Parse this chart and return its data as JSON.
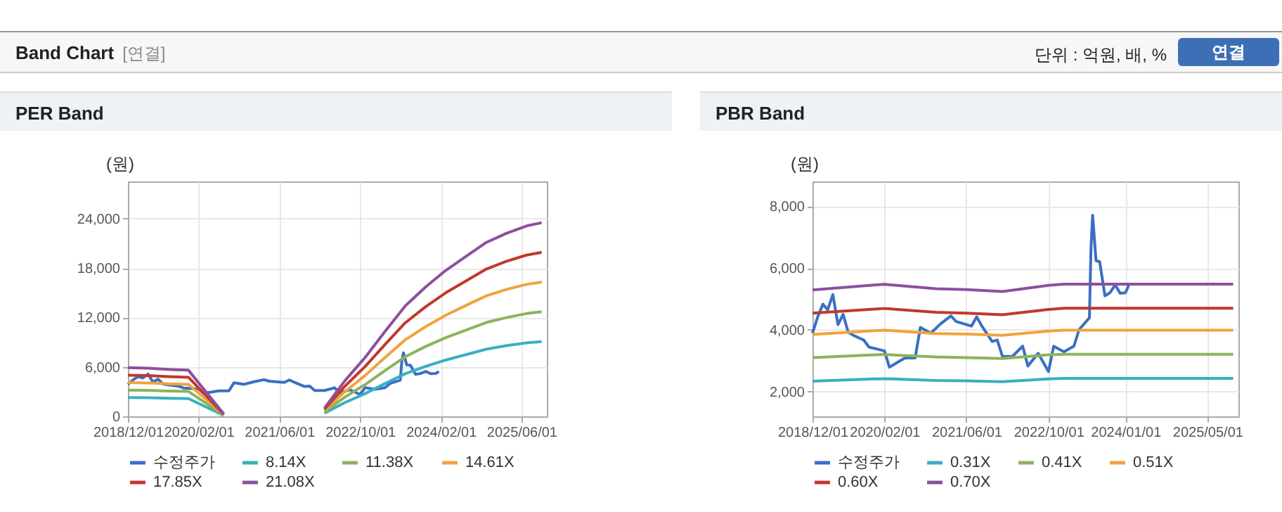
{
  "chart_data": [
    {
      "type": "other",
      "title": "Band Chart",
      "subtitle": "[연결]",
      "annotations": [
        "단위 : 억원, 배, %",
        "연결"
      ]
    },
    {
      "type": "line",
      "title": "PER Band",
      "ylabel": "(원)",
      "grid": true,
      "legend": "bottom",
      "xlim": [
        "2018-12-01",
        "2025-11-01"
      ],
      "xticks": [
        {
          "value": "2018-12-01",
          "label": "2018/12/01"
        },
        {
          "value": "2020-02-01",
          "label": "2020/02/01"
        },
        {
          "value": "2021-06-01",
          "label": "2021/06/01"
        },
        {
          "value": "2022-10-01",
          "label": "2022/10/01"
        },
        {
          "value": "2024-02-01",
          "label": "2024/02/01"
        },
        {
          "value": "2025-06-01",
          "label": "2025/06/01"
        }
      ],
      "ylim": [
        0,
        28500
      ],
      "yticks": [
        0,
        {
          "value": 6000,
          "label": "6,000"
        },
        {
          "value": 12000,
          "label": "12,000"
        },
        {
          "value": 18000,
          "label": "18,000"
        },
        {
          "value": 24000,
          "label": "24,000"
        }
      ],
      "x": [
        "2018-12",
        "2019-04",
        "2019-08",
        "2019-12",
        "2020-07",
        "2021-01",
        "2022-03",
        "2022-07",
        "2022-11",
        "2023-03",
        "2023-07",
        "2023-11",
        "2024-03",
        "2024-07",
        "2024-11",
        "2025-03",
        "2025-07",
        "2025-10"
      ],
      "series": [
        {
          "name": "수정주가",
          "color": "#3a6fc4",
          "x": [
            "2018-12-01",
            "2019-01-01",
            "2019-02-01",
            "2019-03-01",
            "2019-04-01",
            "2019-05-01",
            "2019-06-01",
            "2019-07-01",
            "2019-08-01",
            "2019-10-01",
            "2019-11-01",
            "2020-02-01",
            "2020-03-01",
            "2020-06-01",
            "2020-08-01",
            "2020-09-01",
            "2020-11-01",
            "2021-01-01",
            "2021-03-01",
            "2021-04-01",
            "2021-07-01",
            "2021-08-01",
            "2021-09-01",
            "2021-11-01",
            "2021-12-01",
            "2022-01-01",
            "2022-03-01",
            "2022-05-01",
            "2022-06-01",
            "2022-08-01",
            "2022-10-01",
            "2022-11-01",
            "2023-01-01",
            "2023-03-01",
            "2023-04-01",
            "2023-06-01",
            "2023-06-10",
            "2023-06-20",
            "2023-07-10",
            "2023-08-01",
            "2023-09-01",
            "2023-10-01",
            "2023-11-01",
            "2023-12-01",
            "2024-01-01",
            "2024-01-20"
          ],
          "values": [
            3890,
            4420,
            4830,
            4650,
            5140,
            4170,
            4500,
            3920,
            3820,
            3670,
            3440,
            3320,
            2790,
            3090,
            3090,
            4080,
            3890,
            4200,
            4450,
            4270,
            4120,
            4420,
            4120,
            3620,
            3670,
            3140,
            3140,
            3470,
            2830,
            3240,
            2650,
            3470,
            3290,
            3470,
            4010,
            4390,
            6600,
            7710,
            6240,
            6200,
            5100,
            5200,
            5450,
            5180,
            5200,
            5440
          ]
        },
        {
          "name": "8.14X",
          "color": "#3aafc0",
          "values": [
            2280,
            2260,
            2200,
            2160,
            120,
            null,
            390,
            1660,
            2760,
            3980,
            5170,
            6060,
            6830,
            7490,
            8150,
            8570,
            8920,
            9070
          ]
        },
        {
          "name": "11.38X",
          "color": "#8db35a",
          "values": [
            3180,
            3160,
            3080,
            3020,
            160,
            null,
            540,
            2320,
            3860,
            5560,
            7230,
            8480,
            9550,
            10470,
            11390,
            11980,
            12470,
            12690
          ]
        },
        {
          "name": "14.61X",
          "color": "#f0a33c",
          "values": [
            4090,
            4050,
            3950,
            3880,
            210,
            null,
            690,
            2980,
            4960,
            7140,
            9290,
            10880,
            12270,
            13450,
            14620,
            15390,
            16010,
            16290
          ]
        },
        {
          "name": "17.85X",
          "color": "#c0392b",
          "values": [
            5000,
            4950,
            4830,
            4740,
            250,
            null,
            850,
            3640,
            6050,
            8720,
            11350,
            13300,
            14990,
            16430,
            17870,
            18800,
            19560,
            19900
          ]
        },
        {
          "name": "21.08X",
          "color": "#8e4f9e",
          "values": [
            5900,
            5850,
            5700,
            5600,
            300,
            null,
            1000,
            4300,
            7150,
            10300,
            13400,
            15700,
            17700,
            19400,
            21100,
            22200,
            23100,
            23500
          ]
        }
      ]
    },
    {
      "type": "line",
      "title": "PBR Band",
      "ylabel": "(원)",
      "grid": true,
      "legend": "bottom",
      "xlim": [
        "2018-12-01",
        "2025-11-01"
      ],
      "xticks": [
        {
          "value": "2018-12-01",
          "label": "2018/12/01"
        },
        {
          "value": "2020-02-01",
          "label": "2020/02/01"
        },
        {
          "value": "2021-06-01",
          "label": "2021/06/01"
        },
        {
          "value": "2022-10-01",
          "label": "2022/10/01"
        },
        {
          "value": "2024-01-01",
          "label": "2024/01/01"
        },
        {
          "value": "2025-05-01",
          "label": "2025/05/01"
        }
      ],
      "ylim": [
        1200,
        8800
      ],
      "yticks": [
        {
          "value": 2000,
          "label": "2,000"
        },
        {
          "value": 4000,
          "label": "4,000"
        },
        {
          "value": 6000,
          "label": "6,000"
        },
        {
          "value": 8000,
          "label": "8,000"
        }
      ],
      "x": [
        "2018-12",
        "2019-12",
        "2020-02",
        "2020-12",
        "2021-06",
        "2022-01",
        "2022-10",
        "2023-01",
        "2025-10"
      ],
      "series": [
        {
          "name": "수정주가",
          "color": "#3a6fc4",
          "x": [
            "2018-12-01",
            "2019-01-01",
            "2019-02-01",
            "2019-03-01",
            "2019-04-01",
            "2019-05-01",
            "2019-06-01",
            "2019-07-01",
            "2019-08-01",
            "2019-10-01",
            "2019-11-01",
            "2020-02-01",
            "2020-03-01",
            "2020-06-01",
            "2020-08-01",
            "2020-09-01",
            "2020-11-01",
            "2021-01-01",
            "2021-03-01",
            "2021-04-01",
            "2021-07-01",
            "2021-08-01",
            "2021-09-01",
            "2021-11-01",
            "2021-12-01",
            "2022-01-01",
            "2022-03-01",
            "2022-05-01",
            "2022-06-01",
            "2022-08-01",
            "2022-10-01",
            "2022-11-01",
            "2023-01-01",
            "2023-03-01",
            "2023-04-01",
            "2023-06-01",
            "2023-06-10",
            "2023-06-20",
            "2023-07-10",
            "2023-08-01",
            "2023-09-01",
            "2023-10-01",
            "2023-11-01",
            "2023-12-01",
            "2024-01-01",
            "2024-01-20"
          ],
          "values": [
            3890,
            4420,
            4830,
            4650,
            5140,
            4170,
            4500,
            3920,
            3820,
            3670,
            3440,
            3320,
            2790,
            3090,
            3090,
            4080,
            3890,
            4200,
            4450,
            4270,
            4120,
            4420,
            4120,
            3620,
            3670,
            3140,
            3140,
            3470,
            2830,
            3240,
            2650,
            3470,
            3290,
            3470,
            4010,
            4390,
            6600,
            7710,
            6240,
            6200,
            5100,
            5200,
            5450,
            5180,
            5200,
            5440
          ]
        },
        {
          "name": "0.31X",
          "color": "#3aafc0",
          "values": [
            2340,
            2410,
            2420,
            2360,
            2350,
            2320,
            2410,
            2430,
            2430
          ]
        },
        {
          "name": "0.41X",
          "color": "#8db35a",
          "values": [
            3100,
            3190,
            3200,
            3120,
            3100,
            3070,
            3190,
            3210,
            3210
          ]
        },
        {
          "name": "0.51X",
          "color": "#f0a33c",
          "values": [
            3850,
            3970,
            3990,
            3880,
            3860,
            3820,
            3960,
            3990,
            3990
          ]
        },
        {
          "name": "0.60X",
          "color": "#c0392b",
          "values": [
            4540,
            4670,
            4690,
            4570,
            4540,
            4490,
            4660,
            4700,
            4700
          ]
        },
        {
          "name": "0.70X",
          "color": "#8e4f9e",
          "values": [
            5290,
            5450,
            5470,
            5330,
            5300,
            5240,
            5440,
            5480,
            5480
          ]
        }
      ]
    }
  ]
}
